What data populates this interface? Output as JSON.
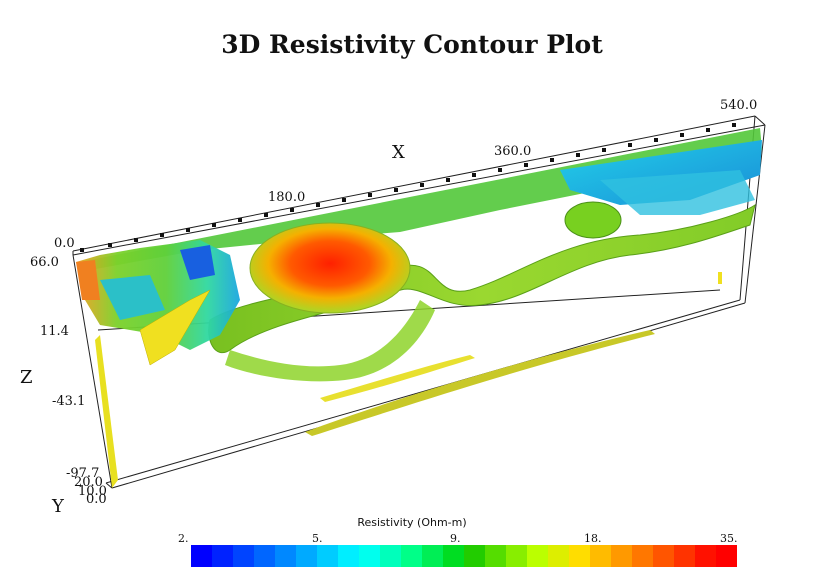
{
  "title": "3D Resistivity Contour Plot",
  "axes": {
    "x": {
      "label": "X",
      "ticks": [
        "180.0",
        "360.0",
        "540.0"
      ]
    },
    "x_origin": "0.0",
    "z": {
      "label": "Z",
      "ticks": [
        "66.0",
        "11.4",
        "-43.1",
        "-97.7"
      ]
    },
    "y": {
      "label": "Y",
      "ticks": [
        "20.0",
        "10.0",
        "0.0"
      ]
    }
  },
  "colorbar": {
    "title": "Resistivity (Ohm-m)",
    "ticks": [
      "2.",
      "5.",
      "9.",
      "18.",
      "35."
    ],
    "colors": [
      "#0000ff",
      "#0022ff",
      "#0044ff",
      "#0066ff",
      "#0088ff",
      "#00aaff",
      "#00ccff",
      "#00eeff",
      "#00ffee",
      "#00ffbb",
      "#00ff88",
      "#00ee55",
      "#00dd22",
      "#22cc00",
      "#55dd00",
      "#88ee00",
      "#bbff00",
      "#ddee00",
      "#ffdd00",
      "#ffbb00",
      "#ff9900",
      "#ff7700",
      "#ff5500",
      "#ff3300",
      "#ff1100",
      "#ff0000"
    ]
  }
}
